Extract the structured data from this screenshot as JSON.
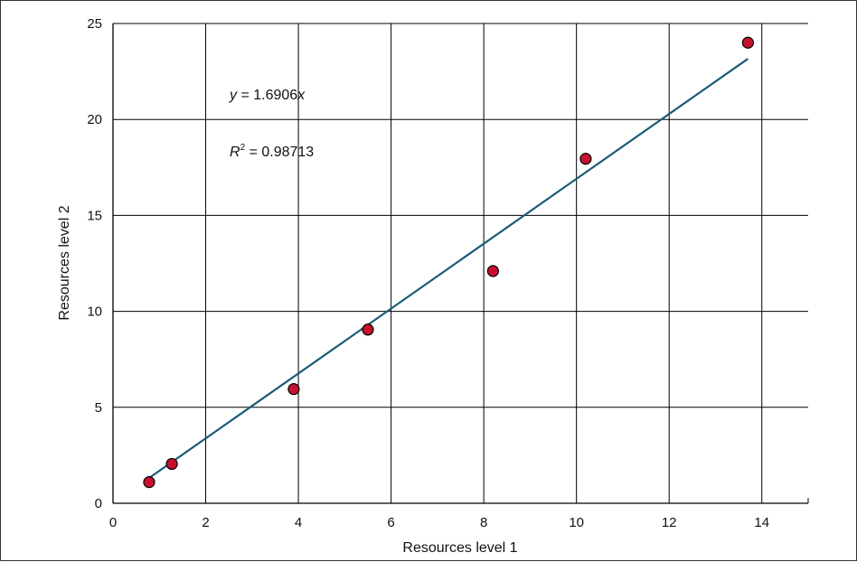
{
  "chart_data": {
    "type": "scatter",
    "xlabel": "Resources level 1",
    "ylabel": "Resources level 2",
    "xlim": [
      0,
      15
    ],
    "ylim": [
      0,
      25
    ],
    "x_ticks": [
      0,
      2,
      4,
      6,
      8,
      10,
      12,
      14
    ],
    "y_ticks": [
      0,
      5,
      10,
      15,
      20,
      25
    ],
    "grid": true,
    "points": [
      {
        "x": 0.78,
        "y": 1.1
      },
      {
        "x": 1.27,
        "y": 2.05
      },
      {
        "x": 3.9,
        "y": 5.95
      },
      {
        "x": 5.5,
        "y": 9.05
      },
      {
        "x": 8.2,
        "y": 12.1
      },
      {
        "x": 10.2,
        "y": 17.95
      },
      {
        "x": 13.7,
        "y": 24.0
      }
    ],
    "trendline": {
      "slope": 1.6906,
      "x_start": 0.7,
      "x_end": 13.7
    },
    "annotations": {
      "equation": {
        "lhs": "y",
        "op": " = ",
        "value": "1.6906",
        "var": "x"
      },
      "r_squared": {
        "lhs": "R",
        "sup": "2",
        "op": " = ",
        "value": "0.98713"
      }
    },
    "colors": {
      "points": "#c8102e",
      "trendline": "#1b5a7a",
      "grid": "#000000"
    }
  }
}
